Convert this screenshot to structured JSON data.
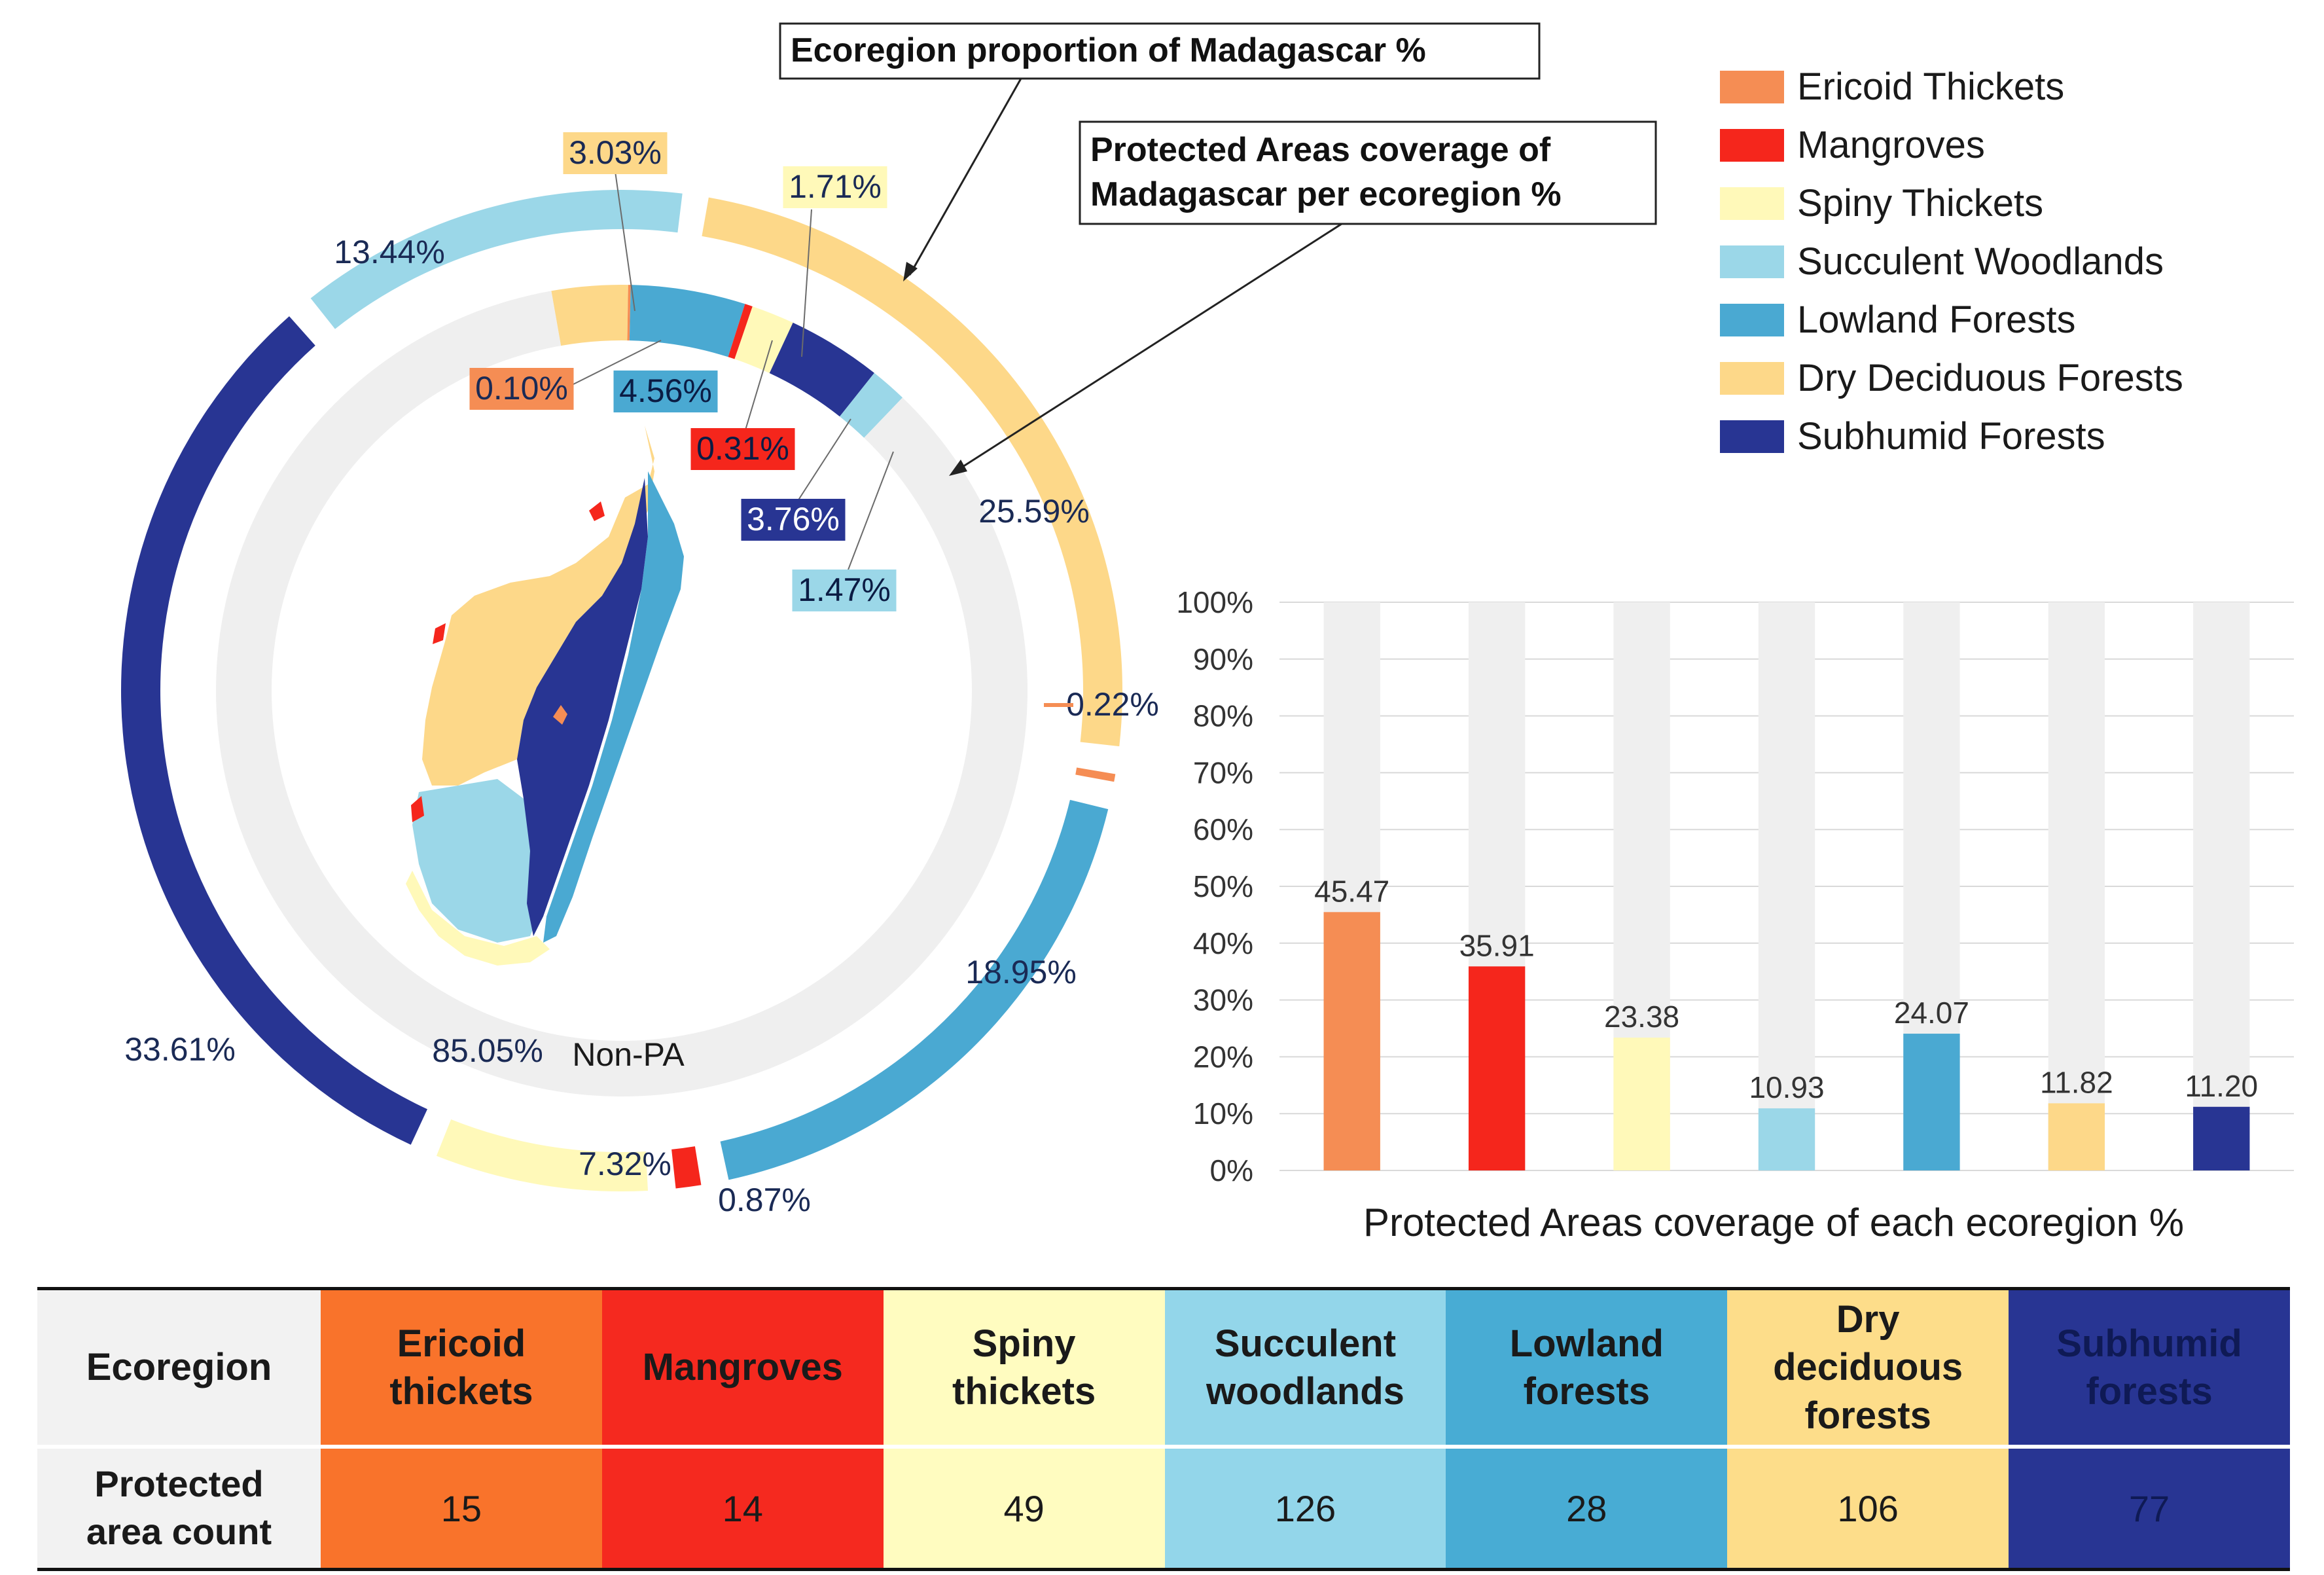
{
  "chart_data": [
    {
      "type": "pie",
      "title": "Ecoregion proportion of Madagascar %",
      "ring": "outer",
      "segments": [
        {
          "name": "Dry Deciduous Forests",
          "value": 25.59,
          "label": "25.59%",
          "color": "#fdd889"
        },
        {
          "name": "Ericoid Thickets",
          "value": 0.22,
          "label": "0.22%",
          "color": "#f58d54"
        },
        {
          "name": "Lowland Forests",
          "value": 18.95,
          "label": "18.95%",
          "color": "#4aa9d2"
        },
        {
          "name": "Mangroves",
          "value": 0.87,
          "label": "0.87%",
          "color": "#f5261c"
        },
        {
          "name": "Spiny Thickets",
          "value": 7.32,
          "label": "7.32%",
          "color": "#fff9b9"
        },
        {
          "name": "Subhumid Forests",
          "value": 33.61,
          "label": "33.61%",
          "color": "#283593"
        },
        {
          "name": "Succulent Woodlands",
          "value": 13.44,
          "label": "13.44%",
          "color": "#9bd7e8"
        }
      ]
    },
    {
      "type": "pie",
      "title": "Protected Areas coverage of Madagascar per ecoregion %",
      "ring": "inner",
      "segments": [
        {
          "name": "Dry Deciduous Forests",
          "value": 3.03,
          "label": "3.03%",
          "color": "#fdd889"
        },
        {
          "name": "Ericoid Thickets",
          "value": 0.1,
          "label": "0.10%",
          "color": "#f58d54"
        },
        {
          "name": "Lowland Forests",
          "value": 4.56,
          "label": "4.56%",
          "color": "#4aa9d2"
        },
        {
          "name": "Mangroves",
          "value": 0.31,
          "label": "0.31%",
          "color": "#f5261c"
        },
        {
          "name": "Spiny Thickets",
          "value": 1.71,
          "label": "1.71%",
          "color": "#fff9b9"
        },
        {
          "name": "Subhumid Forests",
          "value": 3.76,
          "label": "3.76%",
          "color": "#283593"
        },
        {
          "name": "Succulent Woodlands",
          "value": 1.47,
          "label": "1.47%",
          "color": "#9bd7e8"
        },
        {
          "name": "Non-PA",
          "value": 85.05,
          "label": "85.05%",
          "label2": "Non-PA",
          "color": "#efefef"
        }
      ]
    },
    {
      "type": "bar",
      "xlabel": "Protected Areas coverage of each ecoregion %",
      "ylabel": "",
      "ylim": [
        0,
        100
      ],
      "yticks": [
        "0%",
        "10%",
        "20%",
        "30%",
        "40%",
        "50%",
        "60%",
        "70%",
        "80%",
        "90%",
        "100%"
      ],
      "grid": true,
      "background_color": "#efefef",
      "categories": [
        "Ericoid Thickets",
        "Mangroves",
        "Spiny Thickets",
        "Succulent Woodlands",
        "Lowland Forests",
        "Dry Deciduous Forests",
        "Subhumid Forests"
      ],
      "values": [
        45.47,
        35.91,
        23.38,
        10.93,
        24.07,
        11.82,
        11.2
      ],
      "value_labels": [
        "45.47",
        "35.91",
        "23.38",
        "10.93",
        "24.07",
        "11.82",
        "11.20"
      ],
      "colors": [
        "#f58d54",
        "#f5261c",
        "#fff9b9",
        "#9bd7e8",
        "#4aa9d2",
        "#fdd889",
        "#283593"
      ]
    }
  ],
  "legend": {
    "placement": "top-right",
    "items": [
      {
        "label": "Ericoid Thickets",
        "color": "#f58d54"
      },
      {
        "label": "Mangroves",
        "color": "#f5261c"
      },
      {
        "label": "Spiny Thickets",
        "color": "#fff9b9"
      },
      {
        "label": "Succulent Woodlands",
        "color": "#9bd7e8"
      },
      {
        "label": "Lowland Forests",
        "color": "#4aa9d2"
      },
      {
        "label": "Dry Deciduous Forests",
        "color": "#fdd889"
      },
      {
        "label": "Subhumid Forests",
        "color": "#283593"
      }
    ]
  },
  "callouts": {
    "outer_title": "Ecoregion proportion of Madagascar %",
    "inner_title_line1": "Protected Areas coverage of",
    "inner_title_line2": "Madagascar per ecoregion %"
  },
  "table": {
    "row1_header": "Ecoregion",
    "row2_header_line1": "Protected",
    "row2_header_line2": "area count",
    "columns": [
      {
        "lines": [
          "Ericoid",
          "thickets"
        ],
        "count": "15",
        "bg": "#f9732b",
        "fg": "#1a1a1a"
      },
      {
        "lines": [
          "Mangroves"
        ],
        "count": "14",
        "bg": "#f5291f",
        "fg": "#1a1a1a"
      },
      {
        "lines": [
          "Spiny",
          "thickets"
        ],
        "count": "49",
        "bg": "#fffcc0",
        "fg": "#1a1a1a"
      },
      {
        "lines": [
          "Succulent",
          "woodlands"
        ],
        "count": "126",
        "bg": "#93d6ea",
        "fg": "#1a1a1a"
      },
      {
        "lines": [
          "Lowland",
          "forests"
        ],
        "count": "28",
        "bg": "#48acd4",
        "fg": "#1a1a1a"
      },
      {
        "lines": [
          "Dry",
          "deciduous",
          "forests"
        ],
        "count": "106",
        "bg": "#fddd8a",
        "fg": "#1a1a1a"
      },
      {
        "lines": [
          "Subhumid",
          "forests"
        ],
        "count": "77",
        "bg": "#283593",
        "fg": "#0f1a55"
      }
    ]
  }
}
